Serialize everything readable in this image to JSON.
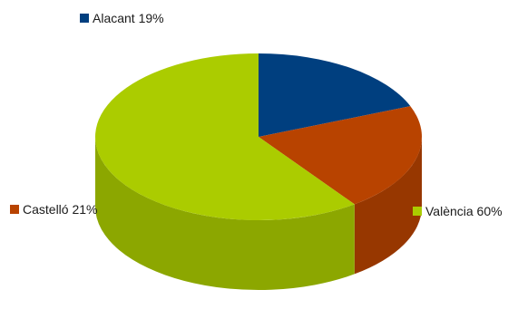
{
  "chart_data": {
    "type": "pie",
    "style": "3d",
    "categories": [
      "Alacant",
      "Castelló",
      "València"
    ],
    "values": [
      19,
      21,
      60
    ],
    "labels": [
      "Alacant 19%",
      "Castelló 21%",
      "València 60%"
    ],
    "colors": [
      "#003f7f",
      "#b84300",
      "#abcc00"
    ],
    "legend": "labels beside slices"
  }
}
